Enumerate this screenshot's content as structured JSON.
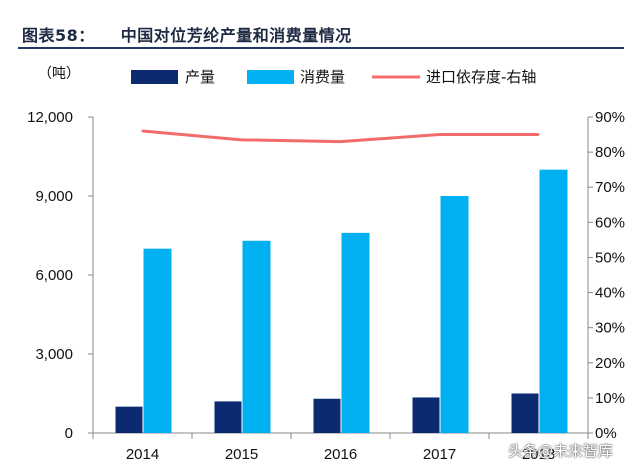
{
  "header": {
    "figure_label": "图表58：",
    "figure_title": "中国对位芳纶产量和消费量情况"
  },
  "watermark": "头条@未来智库",
  "colors": {
    "production": "#0b2a6f",
    "consumption": "#00b0f0",
    "import_ratio": "#f36c6c",
    "title": "#1f2a44",
    "rule": "#1f3864"
  },
  "chart_data": {
    "type": "bar",
    "categories": [
      "2014",
      "2015",
      "2016",
      "2017",
      "2018"
    ],
    "x_tick_labels": [
      "2014",
      "2015",
      "2016",
      "2017",
      "2018"
    ],
    "y_unit_label": "（吨）",
    "ylim": [
      0,
      12000
    ],
    "y_ticks": [
      "0",
      "3,000",
      "6,000",
      "9,000",
      "12,000"
    ],
    "y_tick_values": [
      0,
      3000,
      6000,
      9000,
      12000
    ],
    "y2lim": [
      0,
      0.9
    ],
    "y2_ticks": [
      "0%",
      "10%",
      "20%",
      "30%",
      "40%",
      "50%",
      "60%",
      "70%",
      "80%",
      "90%"
    ],
    "y2_tick_values": [
      0,
      0.1,
      0.2,
      0.3,
      0.4,
      0.5,
      0.6,
      0.7,
      0.8,
      0.9
    ],
    "legend_placement": "top",
    "grid": false,
    "series": [
      {
        "name": "产量",
        "type": "bar",
        "axis": "left",
        "values": [
          1000,
          1200,
          1300,
          1350,
          1500
        ]
      },
      {
        "name": "消费量",
        "type": "bar",
        "axis": "left",
        "values": [
          7000,
          7300,
          7600,
          9000,
          10000
        ]
      },
      {
        "name": "进口依存度-右轴",
        "type": "line",
        "axis": "right",
        "values": [
          0.86,
          0.835,
          0.83,
          0.85,
          0.85
        ]
      }
    ]
  }
}
